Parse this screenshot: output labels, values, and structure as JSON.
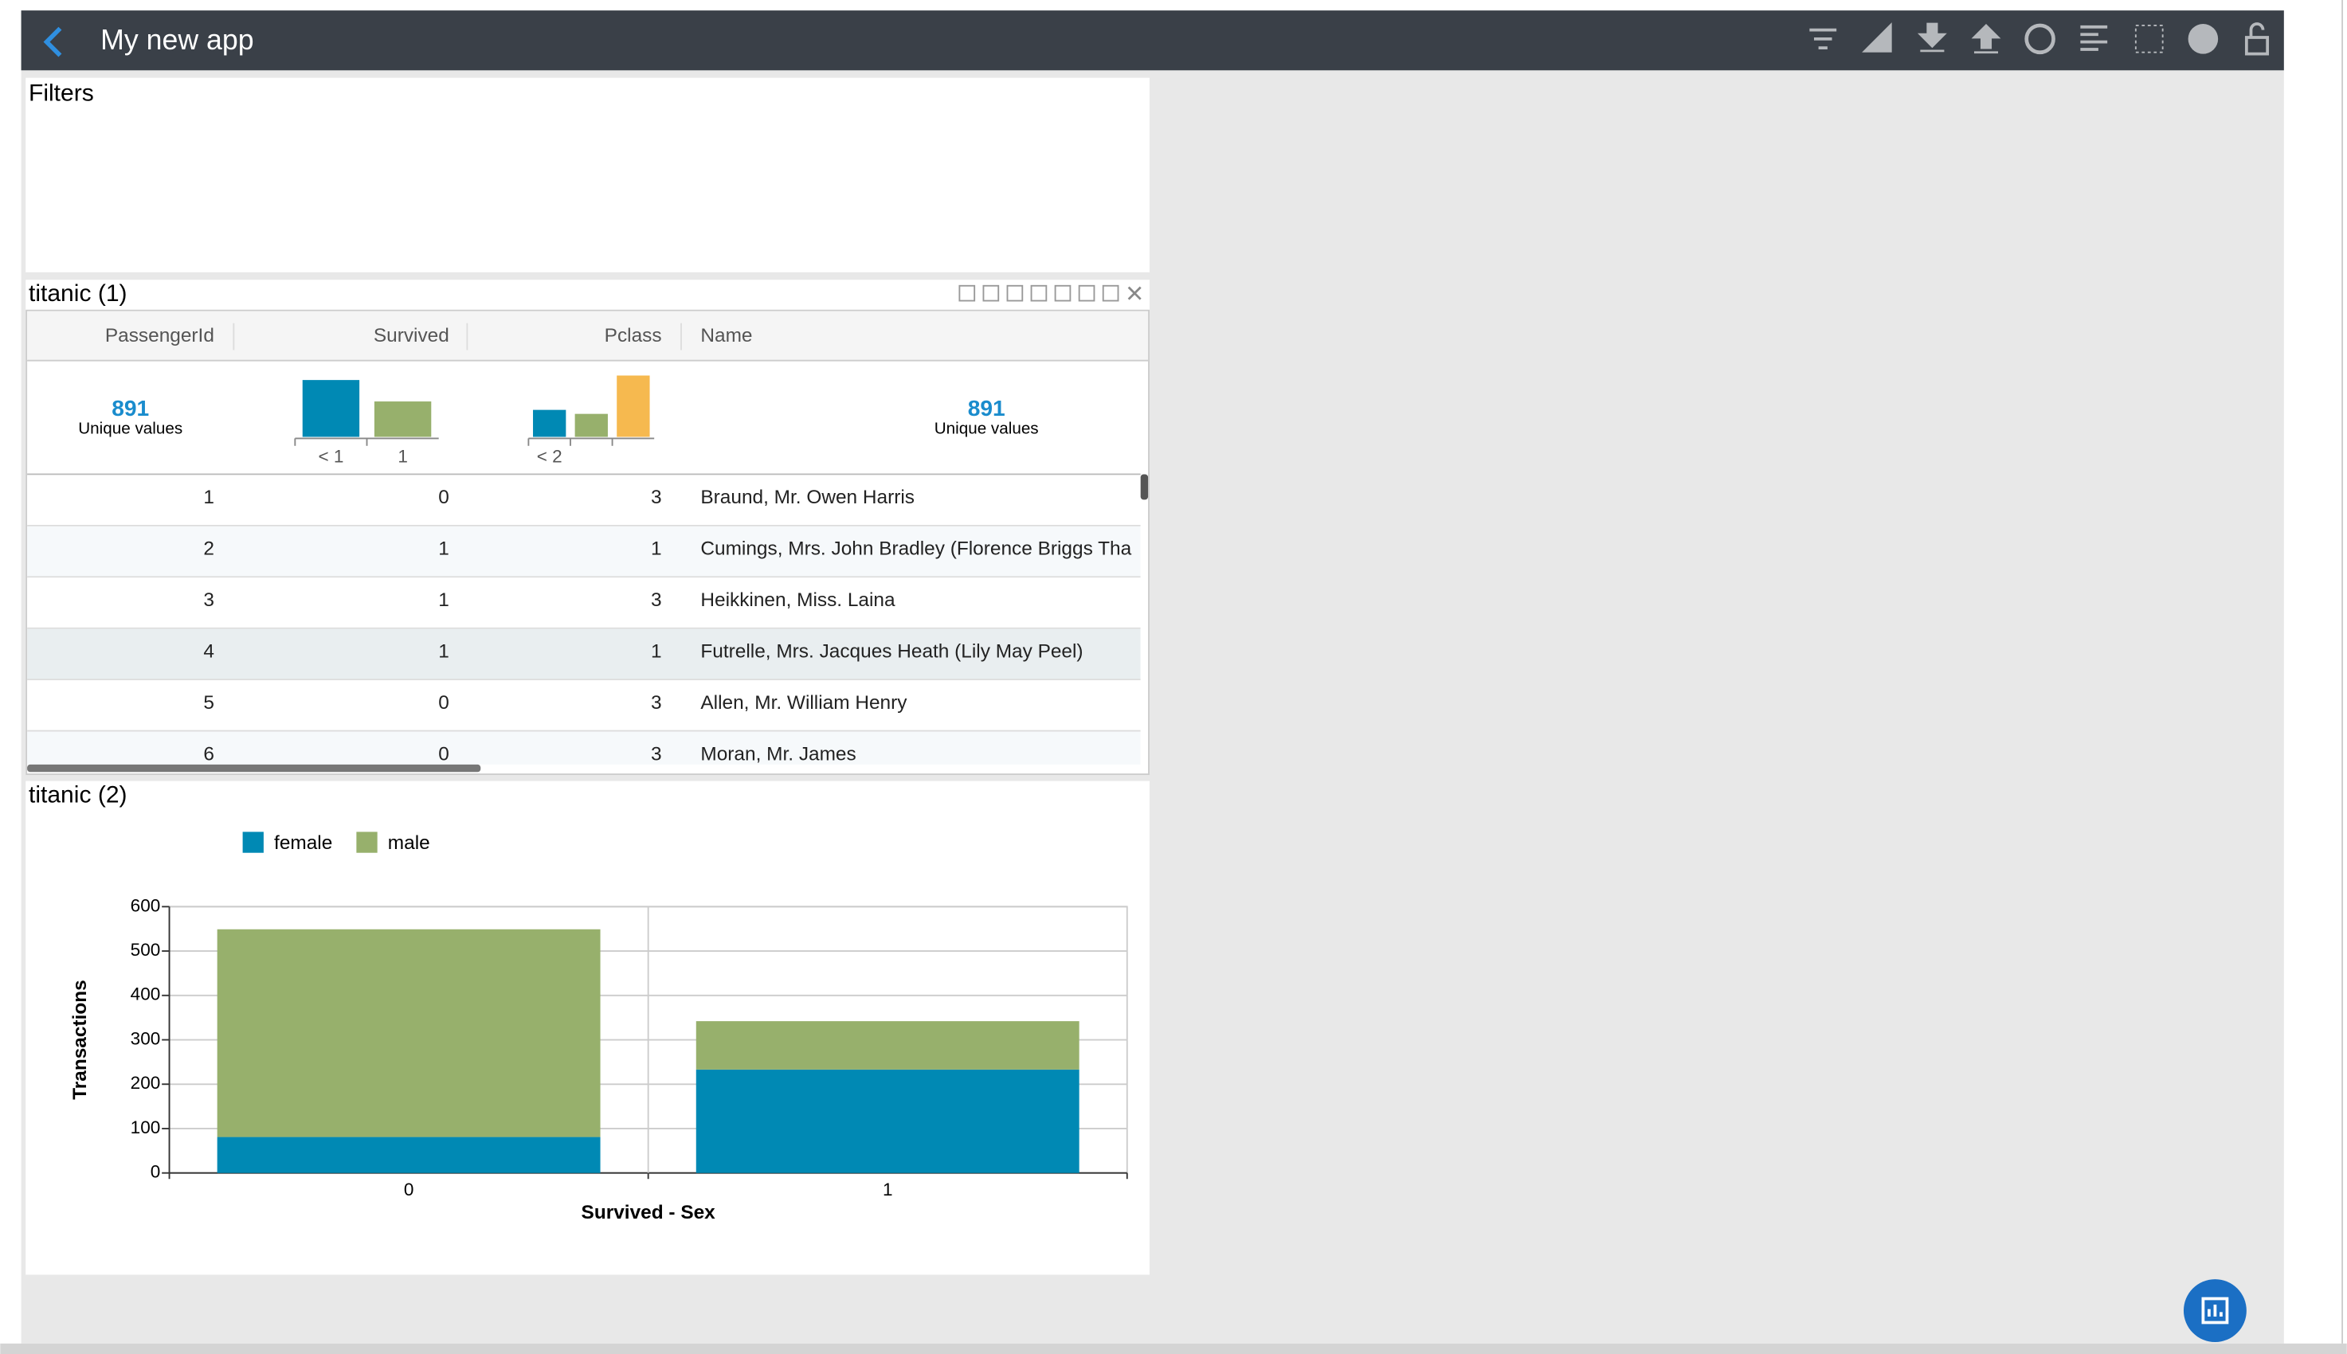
{
  "app": {
    "title": "My new app"
  },
  "filters": {
    "title": "Filters"
  },
  "table_panel": {
    "title": "titanic (1)",
    "columns": [
      "PassengerId",
      "Survived",
      "Pclass",
      "Name"
    ],
    "summaries": [
      {
        "count": 891,
        "label": "Unique values"
      },
      {
        "count": 891,
        "label": "Unique values"
      }
    ],
    "histograms": [
      {
        "labels": [
          "< 1",
          "1"
        ],
        "values": [
          549,
          342
        ],
        "colors": [
          "#0089b4",
          "#97b06c"
        ]
      },
      {
        "labels": [
          "< 2",
          null,
          null
        ],
        "values": [
          216,
          184,
          491
        ],
        "colors": [
          "#0089b4",
          "#97b06c",
          "#f6b94f"
        ]
      }
    ],
    "rows": [
      [
        "1",
        "0",
        "3",
        "Braund, Mr. Owen Harris"
      ],
      [
        "2",
        "1",
        "1",
        "Cumings, Mrs. John Bradley (Florence Briggs Tha"
      ],
      [
        "3",
        "1",
        "3",
        "Heikkinen, Miss. Laina"
      ],
      [
        "4",
        "1",
        "1",
        "Futrelle, Mrs. Jacques Heath (Lily May Peel)"
      ],
      [
        "5",
        "0",
        "3",
        "Allen, Mr. William Henry"
      ],
      [
        "6",
        "0",
        "3",
        "Moran, Mr. James"
      ]
    ]
  },
  "chart_panel": {
    "title": "titanic (2)",
    "chart_data": {
      "type": "stacked_bar",
      "categories": [
        "0",
        "1"
      ],
      "series": [
        {
          "name": "female",
          "color": "#0089b4",
          "values": [
            81,
            233
          ]
        },
        {
          "name": "male",
          "color": "#97b06c",
          "values": [
            468,
            109
          ]
        }
      ],
      "x_label": "Survived - Sex",
      "y_label": "Transactions",
      "ylim": [
        0,
        600
      ],
      "yticks": [
        0,
        100,
        200,
        300,
        400,
        500,
        600
      ],
      "grid": true,
      "legend": "top"
    }
  }
}
